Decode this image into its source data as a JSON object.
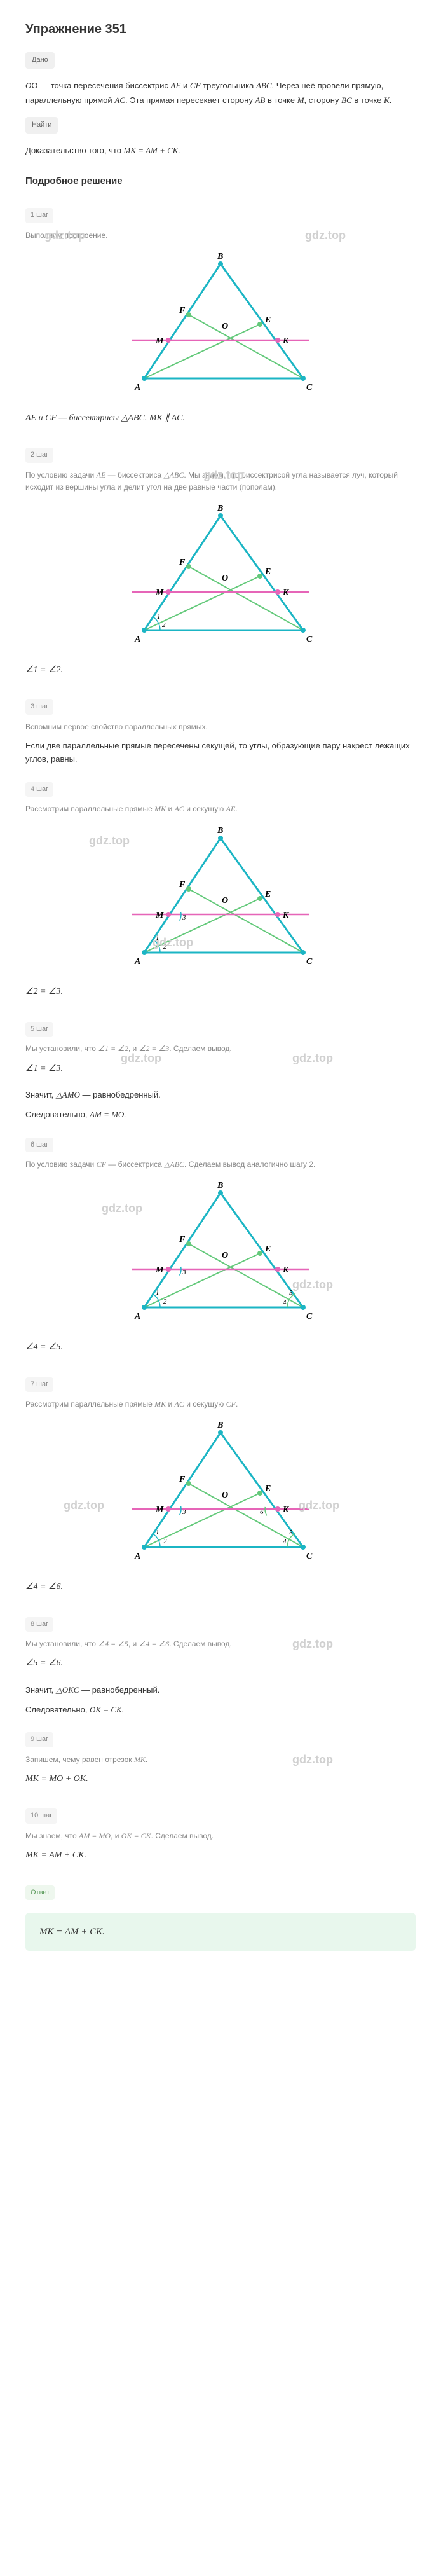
{
  "title": "Упражнение 351",
  "given_badge": "Дано",
  "find_badge": "Найти",
  "problem": {
    "line1_a": "O — точка пересечения биссектрис ",
    "line1_b": " и ",
    "line1_c": " треугольника ",
    "line1_d": ". Через неё",
    "AE": "AE",
    "CF": "CF",
    "ABC": "ABC",
    "line2_a": "провели прямую, параллельную прямой ",
    "line2_b": ". Эта прямая пересекает сторону",
    "AC": "AC",
    "line3_a": " в точке ",
    "line3_b": ", сторону ",
    "line3_c": " в точке ",
    "line3_d": ".",
    "AB": "AB",
    "M": "M",
    "BC": "BC",
    "K": "K",
    "prove": "Доказательство того, что ",
    "eq": "MK = AM + CK."
  },
  "solution_title": "Подробное решение",
  "watermark": "gdz.top",
  "steps": {
    "s1": {
      "badge": "1 шаг",
      "text": "Выполним построение."
    },
    "s1_stmt_a": "AE и CF — биссектрисы △ABC. MK ∥ AC.",
    "s2": {
      "badge": "2 шаг",
      "text_a": "По условию задачи ",
      "text_b": " — биссектриса ",
      "text_c": ". Мы знаем, что биссектрисой угла называется луч, который исходит из вершины угла и делит угол на две равные части (пополам).",
      "AE": "AE",
      "ABC": "△ABC"
    },
    "s2_stmt": "∠1 = ∠2.",
    "s3": {
      "badge": "3 шаг",
      "text": "Вспомним первое свойство параллельных прямых."
    },
    "s3_bold": "Если две параллельные прямые пересечены секущей, то углы, образующие пару накрест лежащих углов, равны.",
    "s4": {
      "badge": "4 шаг",
      "text_a": "Рассмотрим параллельные прямые ",
      "text_b": " и ",
      "text_c": " и секущую ",
      "text_d": ".",
      "MK": "MK",
      "AC": "AC",
      "AE": "AE"
    },
    "s4_stmt": "∠2 = ∠3.",
    "s5": {
      "badge": "5 шаг",
      "text_a": "Мы установили, что ",
      "text_b": ", и ",
      "text_c": ". Сделаем вывод.",
      "e1": "∠1 = ∠2",
      "e2": "∠2 = ∠3"
    },
    "s5_stmt": "∠1 = ∠3.",
    "s5_conc1_a": "Значит, ",
    "s5_conc1_b": " — равнобедренный.",
    "s5_AMO": "△AMO",
    "s5_conc2_a": "Следовательно, ",
    "s5_conc2_eq": "AM = MO.",
    "s6": {
      "badge": "6 шаг",
      "text_a": "По условию задачи ",
      "text_b": " — биссектриса ",
      "text_c": ". Сделаем вывод аналогично шагу 2.",
      "CF": "CF",
      "ABC": "△ABC"
    },
    "s6_stmt": "∠4 = ∠5.",
    "s7": {
      "badge": "7 шаг",
      "text_a": "Рассмотрим параллельные прямые ",
      "text_b": " и ",
      "text_c": " и секущую ",
      "text_d": ".",
      "MK": "MK",
      "AC": "AC",
      "CF": "CF"
    },
    "s7_stmt": "∠4 = ∠6.",
    "s8": {
      "badge": "8 шаг",
      "text_a": "Мы установили, что ",
      "text_b": ", и ",
      "text_c": ". Сделаем вывод.",
      "e1": "∠4 = ∠5",
      "e2": "∠4 = ∠6"
    },
    "s8_stmt": "∠5 = ∠6.",
    "s8_conc1_a": "Значит, ",
    "s8_conc1_b": " — равнобедренный.",
    "s8_OKC": "△OKC",
    "s8_conc2_a": "Следовательно, ",
    "s8_conc2_eq": "OK = CK.",
    "s9": {
      "badge": "9 шаг",
      "text_a": "Запишем, чему равен отрезок ",
      "text_b": ".",
      "MK": "MK"
    },
    "s9_stmt": "MK = MO + OK.",
    "s10": {
      "badge": "10 шаг",
      "text_a": "Мы знаем, что ",
      "text_b": ", и ",
      "text_c": ". Сделаем вывод.",
      "e1": "AM = MO",
      "e2": "OK = CK"
    },
    "s10_stmt": "MK = AM + CK."
  },
  "answer_label": "Ответ",
  "answer": "MK = AM + CK.",
  "colors": {
    "triangle": "#1bb5c4",
    "bisector": "#63c97a",
    "parallel": "#e665b8",
    "vertex": "#1bb5c4",
    "angle_arc": "#1bb5c4",
    "angle_arc2": "#63c97a"
  },
  "labels": {
    "A": "A",
    "B": "B",
    "C": "C",
    "E": "E",
    "F": "F",
    "M": "M",
    "K": "K",
    "O": "O",
    "n1": "1",
    "n2": "2",
    "n3": "3",
    "n4": "4",
    "n5": "5",
    "n6": "6"
  }
}
